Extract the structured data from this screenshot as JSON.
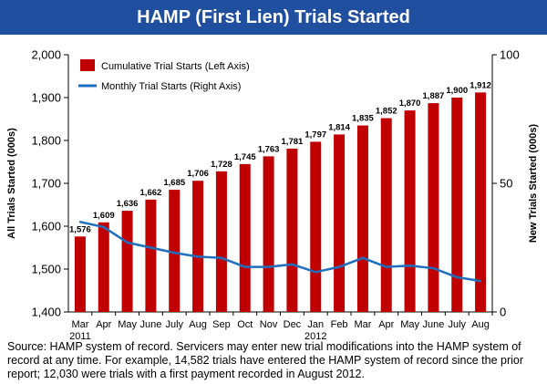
{
  "title": "HAMP (First Lien) Trials Started",
  "footnote": "Source: HAMP system of record. Servicers may enter new trial modifications into the HAMP system of record at any time. For example, 14,582 trials have entered the HAMP system of record since the prior report; 12,030 were trials with a first payment recorded in August 2012.",
  "colors": {
    "banner": "#1f4f9e",
    "bars": "#c00000",
    "line": "#1f6fbf"
  },
  "chart_data": {
    "type": "bar",
    "categories": [
      "Mar",
      "Apr",
      "May",
      "June",
      "July",
      "Aug",
      "Sep",
      "Oct",
      "Nov",
      "Dec",
      "Jan",
      "Feb",
      "Mar",
      "Apr",
      "May",
      "June",
      "July",
      "Aug"
    ],
    "year_labels": [
      {
        "index": 0,
        "text": "2011"
      },
      {
        "index": 10,
        "text": "2012"
      }
    ],
    "series": [
      {
        "name": "Cumulative Trial Starts (Left Axis)",
        "type": "bar",
        "axis": "left",
        "values": [
          1576,
          1609,
          1636,
          1662,
          1685,
          1706,
          1728,
          1745,
          1763,
          1781,
          1797,
          1814,
          1835,
          1852,
          1870,
          1887,
          1900,
          1912
        ],
        "data_labels": [
          "1,576",
          "1,609",
          "1,636",
          "1,662",
          "1,685",
          "1,706",
          "1,728",
          "1,745",
          "1,763",
          "1,781",
          "1,797",
          "1,814",
          "1,835",
          "1,852",
          "1,870",
          "1,887",
          "1,900",
          "1,912"
        ]
      },
      {
        "name": "Monthly Trial Starts (Right Axis)",
        "type": "line",
        "axis": "right",
        "values": [
          35,
          33,
          27,
          25,
          23,
          21.5,
          21,
          17.5,
          17.5,
          18.5,
          15.5,
          17.5,
          21,
          17.5,
          18,
          17,
          13.5,
          12
        ]
      }
    ],
    "ylabel_left": "All Trials Started (000s)",
    "ylabel_right": "New Trials Started (000s)",
    "ylim_left": [
      1400,
      2000
    ],
    "ylim_right": [
      0,
      100
    ],
    "yticks_left": [
      "1,400",
      "1,500",
      "1,600",
      "1,700",
      "1,800",
      "1,900",
      "2,000"
    ],
    "yticks_right": [
      "0",
      "50",
      "100"
    ],
    "legend_position": "top-left",
    "grid": false
  }
}
